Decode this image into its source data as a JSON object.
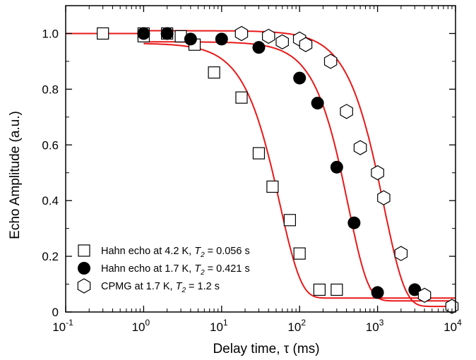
{
  "chart_data": {
    "type": "scatter",
    "xscale": "log",
    "xlim": [
      0.1,
      10000
    ],
    "ylim": [
      0,
      1.1
    ],
    "xlabel": "Delay time, τ (ms)",
    "ylabel": "Echo Amplitude (a.u.)",
    "xticks": [
      {
        "base": "10",
        "exp": "-1",
        "value": 0.1
      },
      {
        "base": "10",
        "exp": "0",
        "value": 1
      },
      {
        "base": "10",
        "exp": "1",
        "value": 10
      },
      {
        "base": "10",
        "exp": "2",
        "value": 100
      },
      {
        "base": "10",
        "exp": "3",
        "value": 1000
      },
      {
        "base": "10",
        "exp": "4",
        "value": 10000
      }
    ],
    "yticks": [
      {
        "label": "0",
        "value": 0
      },
      {
        "label": "0.2",
        "value": 0.2
      },
      {
        "label": "0.4",
        "value": 0.4
      },
      {
        "label": "0.6",
        "value": 0.6
      },
      {
        "label": "0.8",
        "value": 0.8
      },
      {
        "label": "1.0",
        "value": 1.0
      }
    ],
    "fit_color": "#e8191a",
    "grid": false,
    "legend_position": "bottom-left",
    "series": [
      {
        "label_prefix": "Hahn echo at 4.2 K, ",
        "label_var": "T",
        "label_sub": "2",
        "label_suffix": " = 0.056 s",
        "marker": "square-open",
        "x": [
          0.3,
          1,
          1,
          2,
          3,
          4.5,
          8,
          18,
          30,
          45,
          75,
          100,
          180,
          300
        ],
        "y": [
          1.0,
          1.0,
          0.99,
          1.0,
          0.99,
          0.96,
          0.86,
          0.77,
          0.57,
          0.45,
          0.33,
          0.21,
          0.08,
          0.08
        ],
        "fit": {
          "T": 0.056,
          "n": 1.6,
          "A": 0.965,
          "c": 0.05
        }
      },
      {
        "label_prefix": "Hahn echo at 1.7 K, ",
        "label_var": "T",
        "label_sub": "2",
        "label_suffix": " = 0.421 s",
        "marker": "circle-filled",
        "x": [
          1,
          2,
          4,
          10,
          30,
          100,
          170,
          300,
          500,
          1000,
          3000
        ],
        "y": [
          1.0,
          1.0,
          0.98,
          0.98,
          0.95,
          0.84,
          0.75,
          0.52,
          0.32,
          0.07,
          0.08
        ],
        "fit": {
          "T": 0.421,
          "n": 1.7,
          "A": 0.97,
          "c": 0.04
        }
      },
      {
        "label_prefix": "CPMG at 1.7 K, ",
        "label_var": "T",
        "label_sub": "2",
        "label_suffix": " = 1.2 s",
        "marker": "hexagon-open",
        "x": [
          18,
          40,
          60,
          100,
          120,
          250,
          400,
          600,
          1000,
          1200,
          2000,
          4000,
          9000
        ],
        "y": [
          1.0,
          0.99,
          0.97,
          0.98,
          0.96,
          0.9,
          0.72,
          0.59,
          0.5,
          0.41,
          0.21,
          0.06,
          0.02
        ],
        "fit": {
          "T": 1.2,
          "n": 1.6,
          "A": 1.01,
          "c": 0.02
        }
      }
    ]
  }
}
